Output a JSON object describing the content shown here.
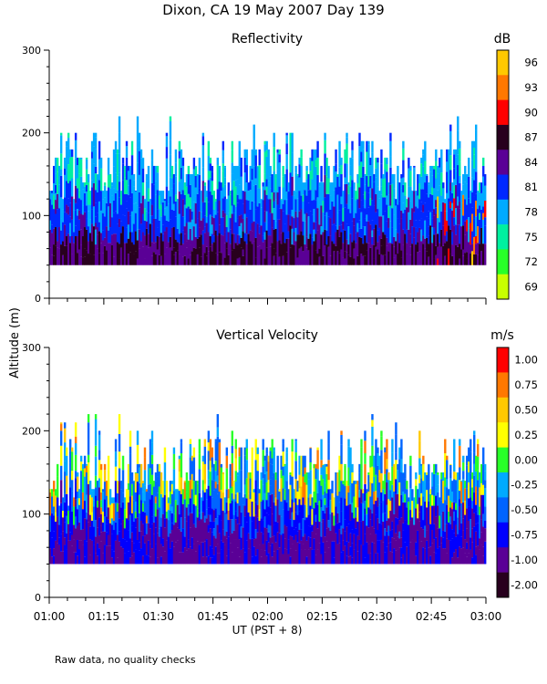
{
  "page_title": "Dixon, CA 19 May 2007  Day 139",
  "y_axis_label": "Altitude (m)",
  "x_axis_label": "UT  (PST + 8)",
  "footer_note": "Raw data, no quality checks",
  "chart_data": [
    {
      "type": "heatmap",
      "title": "Reflectivity",
      "colorbar_unit": "dB",
      "ylim": [
        0,
        300
      ],
      "yticks": [
        "0",
        "100",
        "200",
        "300"
      ],
      "xlim": [
        "01:00",
        "03:00"
      ],
      "xticks": [
        "01:00",
        "01:15",
        "01:30",
        "01:45",
        "02:00",
        "02:15",
        "02:30",
        "02:45",
        "03:00"
      ],
      "colorbar_labels": [
        "96",
        "93",
        "90",
        "87",
        "84",
        "81",
        "78",
        "75",
        "72",
        "69"
      ],
      "colorbar_colors": [
        "#ffc800",
        "#ff7800",
        "#ff0000",
        "#28001e",
        "#5a0096",
        "#0028ff",
        "#00aaff",
        "#00f0a0",
        "#28ff28",
        "#c8ff00"
      ],
      "data_floor_m": 40,
      "data_top_m": 220
    },
    {
      "type": "heatmap",
      "title": "Vertical Velocity",
      "colorbar_unit": "m/s",
      "ylim": [
        0,
        300
      ],
      "yticks": [
        "0",
        "100",
        "200",
        "300"
      ],
      "xlim": [
        "01:00",
        "03:00"
      ],
      "xticks": [
        "01:00",
        "01:15",
        "01:30",
        "01:45",
        "02:00",
        "02:15",
        "02:30",
        "02:45",
        "03:00"
      ],
      "colorbar_labels": [
        "1.00",
        "0.75",
        "0.50",
        "0.25",
        "0.00",
        "-0.25",
        "-0.50",
        "-0.75",
        "-1.00",
        "-2.00"
      ],
      "colorbar_colors": [
        "#ff0000",
        "#ff7800",
        "#ffc800",
        "#ffff00",
        "#28ff28",
        "#00aaff",
        "#0064ff",
        "#0000ff",
        "#5a0096",
        "#28001e"
      ],
      "data_floor_m": 40,
      "data_top_m": 220
    }
  ]
}
